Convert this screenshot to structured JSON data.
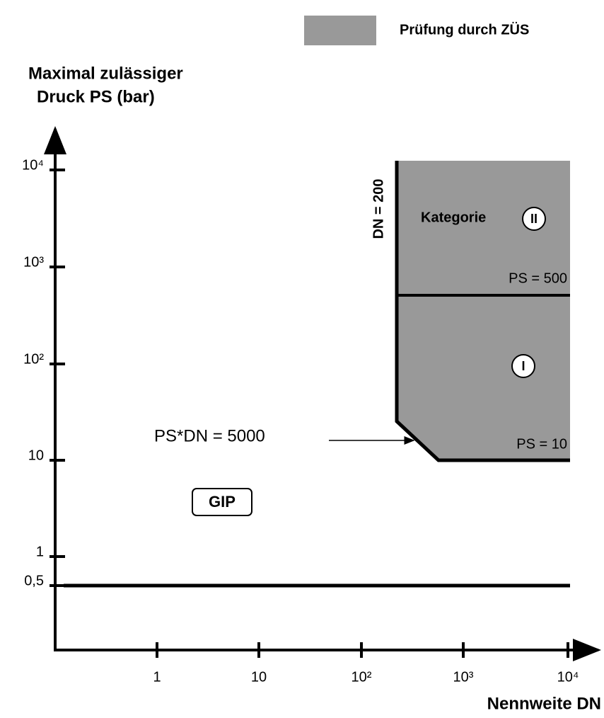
{
  "legend": {
    "label": "Prüfung durch ZÜS"
  },
  "y_axis": {
    "title": [
      "Maximal zulässiger",
      "Druck PS (bar)"
    ],
    "ticks": [
      "10⁴",
      "10³",
      "10²",
      "10",
      "1",
      "0,5"
    ]
  },
  "x_axis": {
    "title": "Nennweite DN",
    "ticks": [
      "1",
      "10",
      "10²",
      "10³",
      "10⁴"
    ]
  },
  "regions": {
    "dn_limit": "DN = 200",
    "category_label": "Kategorie",
    "category_2": "II",
    "ps_500": "PS = 500",
    "category_1": "I",
    "ps_10": "PS = 10",
    "product_limit": "PS*DN = 5000",
    "gip": "GIP"
  }
}
